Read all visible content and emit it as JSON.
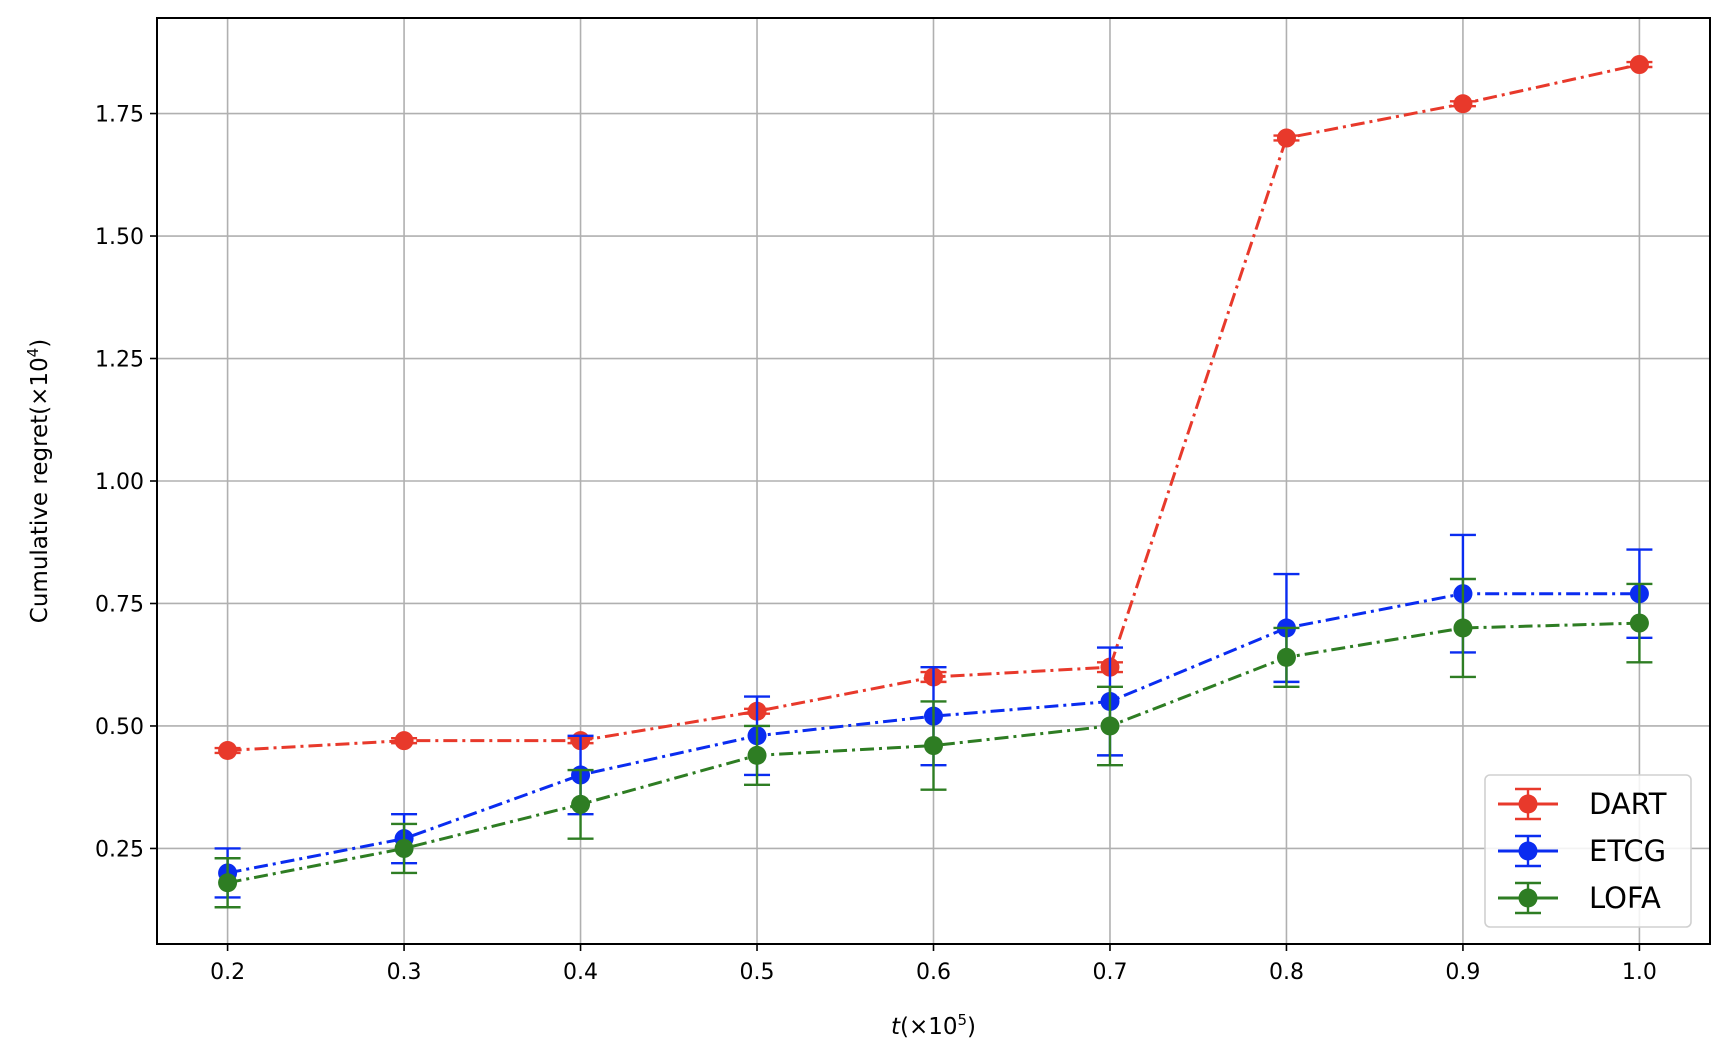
{
  "chart_data": {
    "type": "line",
    "xlabel": {
      "main": "t",
      "unit": "(×10",
      "exp": "5",
      "close": ")"
    },
    "ylabel": {
      "main": "Cumulative regret(×10",
      "exp": "4",
      "close": ")"
    },
    "x": [
      0.2,
      0.3,
      0.4,
      0.5,
      0.6,
      0.7,
      0.8,
      0.9,
      1.0
    ],
    "x_tick_labels": [
      "0.2",
      "0.3",
      "0.4",
      "0.5",
      "0.6",
      "0.7",
      "0.8",
      "0.9",
      "1.0"
    ],
    "y_ticks": [
      0.25,
      0.5,
      0.75,
      1.0,
      1.25,
      1.5,
      1.75
    ],
    "y_tick_labels": [
      "0.25",
      "0.50",
      "0.75",
      "1.00",
      "1.25",
      "1.50",
      "1.75"
    ],
    "xlim": [
      0.16,
      1.04
    ],
    "ylim": [
      0.055,
      1.945
    ],
    "grid": true,
    "legend_position": "bottom-right",
    "series": [
      {
        "name": "DART",
        "color": "#e8392b",
        "values": [
          0.45,
          0.47,
          0.47,
          0.53,
          0.6,
          0.62,
          1.7,
          1.77,
          1.85
        ],
        "errors": [
          0.005,
          0.005,
          0.005,
          0.005,
          0.01,
          0.01,
          0.005,
          0.005,
          0.005
        ]
      },
      {
        "name": "ETCG",
        "color": "#0a2cf0",
        "values": [
          0.2,
          0.27,
          0.4,
          0.48,
          0.52,
          0.55,
          0.7,
          0.77,
          0.77
        ],
        "errors": [
          0.05,
          0.05,
          0.08,
          0.08,
          0.1,
          0.11,
          0.11,
          0.12,
          0.09
        ]
      },
      {
        "name": "LOFA",
        "color": "#2e7d23",
        "values": [
          0.18,
          0.25,
          0.34,
          0.44,
          0.46,
          0.5,
          0.64,
          0.7,
          0.71
        ],
        "errors": [
          0.05,
          0.05,
          0.07,
          0.06,
          0.09,
          0.08,
          0.06,
          0.1,
          0.08
        ]
      }
    ]
  }
}
